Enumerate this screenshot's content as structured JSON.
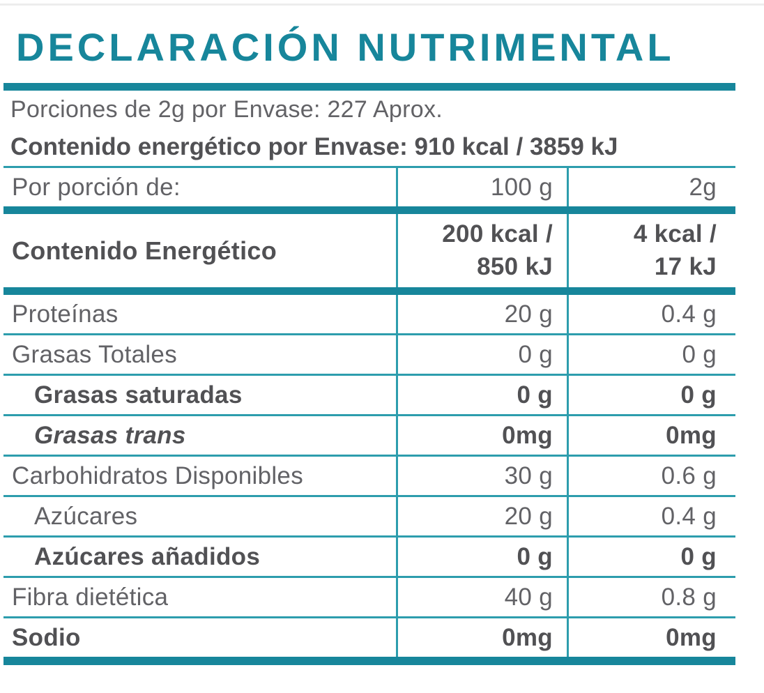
{
  "title": "DECLARACIÓN NUTRIMENTAL",
  "intro": {
    "servings_line": "Porciones de 2g por Envase: 227 Aprox.",
    "energy_line": "Contenido energético por Envase: 910 kcal / 3859 kJ"
  },
  "table": {
    "header_row": {
      "label": "Por porción de:",
      "per100": "100 g",
      "per_serving": "2g"
    },
    "energy_row": {
      "label": "Contenido Energético",
      "per100_line1": "200 kcal /",
      "per100_line2": "850 kJ",
      "per_serving_line1": "4 kcal /",
      "per_serving_line2": "17 kJ"
    },
    "rows": [
      {
        "label": "Proteínas",
        "per100": "20 g",
        "per_serving": "0.4 g"
      },
      {
        "label": "Grasas Totales",
        "per100": "0 g",
        "per_serving": "0 g"
      },
      {
        "label": "Grasas saturadas",
        "per100": "0 g",
        "per_serving": "0 g"
      },
      {
        "label": "Grasas trans",
        "per100": "0mg",
        "per_serving": "0mg"
      },
      {
        "label": "Carbohidratos Disponibles",
        "per100": "30 g",
        "per_serving": "0.6 g"
      },
      {
        "label": "Azúcares",
        "per100": "20 g",
        "per_serving": "0.4 g"
      },
      {
        "label": "Azúcares añadidos",
        "per100": "0 g",
        "per_serving": "0 g"
      },
      {
        "label": "Fibra dietética",
        "per100": "40 g",
        "per_serving": "0.8 g"
      },
      {
        "label": "Sodio",
        "per100": "0mg",
        "per_serving": "0mg"
      }
    ]
  },
  "colors": {
    "teal": "#17869B",
    "teal_line": "#2D9DAD",
    "text": "#626266",
    "text_bold": "#515154"
  }
}
